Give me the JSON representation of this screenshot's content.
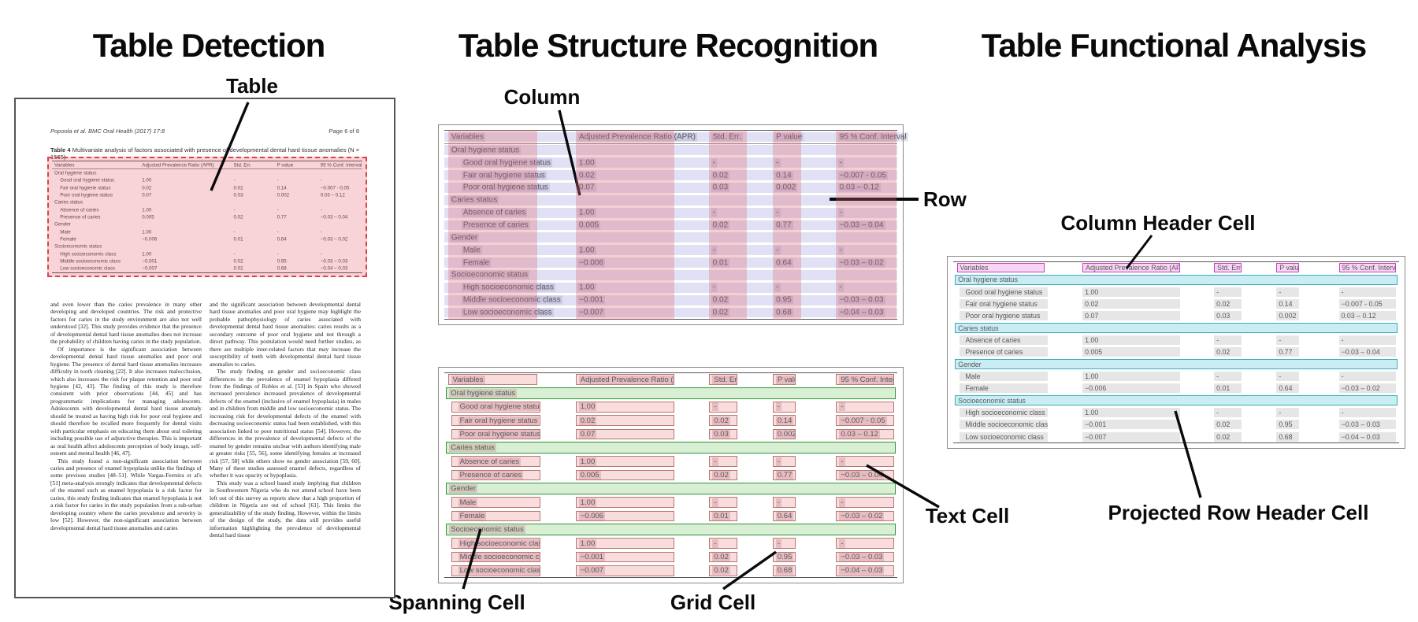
{
  "titles": {
    "detection": "Table Detection",
    "structure": "Table Structure Recognition",
    "functional": "Table Functional Analysis"
  },
  "annotations": {
    "table": "Table",
    "column": "Column",
    "row": "Row",
    "column_header_cell": "Column Header Cell",
    "projected_row_header_cell": "Projected Row Header Cell",
    "text_cell": "Text Cell",
    "spanning_cell": "Spanning Cell",
    "grid_cell": "Grid Cell"
  },
  "document": {
    "running_head_left": "Popoola et al. BMC Oral Health (2017) 17:8",
    "running_head_right": "Page 6 of 8",
    "table_caption_label": "Table 4",
    "table_caption": "Multivariate analysis of factors associated with presence of developmental dental hard tissue anomalies (N = 1565)",
    "body_left": [
      "and even lower than the caries prevalence in many other developing and developed countries. The risk and protective factors for caries in the study environment are also not well understood [32]. This study provides evidence that the presence of developmental dental hard tissue anomalies does not increase the probability of children having caries in the study population.",
      "Of importance is the significant association between developmental dental hard tissue anomalies and poor oral hygiene. The presence of dental hard tissue anomalies increases difficulty in tooth cleaning [22]. It also increases malocclusion, which also increases the risk for plaque retention and poor oral hygiene [42, 43]. The finding of this study is therefore consistent with prior observations [44, 45] and has programmatic implications for managing adolescents. Adolescents with developmental dental hard tissue anomaly should be treated as having high risk for poor oral hygiene and should therefore be recalled more frequently for dental visits with particular emphasis on educating them about oral toileting including possible use of adjunctive therapies. This is important as oral health affect adolescents perception of body image, self-esteem and mental health [46, 47].",
      "This study found a non-significant association between caries and presence of enamel hypoplasia unlike the findings of some previous studies [48–51]. While Vargas-Ferreira et al's [51] meta-analysis strongly indicates that developmental defects of the enamel such as enamel hypoplasia is a risk factor for caries, this study finding indicates that enamel hypoplasia is not a risk factor for caries in the study population from a sub-urban developing country where the caries prevalence and severity is low [52]. However, the non-significant association between developmental dental hard tissue anomalies and caries"
    ],
    "body_right": [
      "and the significant association between developmental dental hard tissue anomalies and poor oral hygiene may highlight the probable pathophysiology of caries associated with developmental dental hard tissue anomalies: caries results as a secondary outcome of poor oral hygiene and not through a direct pathway. This postulation would need further studies, as there are multiple inter-related factors that may increase the susceptibility of teeth with developmental dental hard tissue anomalies to caries.",
      "The study finding on gender and socioeconomic class differences in the prevalence of enamel hypoplasia differed from the findings of Robles et al. [53] in Spain who showed increased prevalence increased prevalence of developmental defects of the enamel (inclusive of enamel hypoplasia) in males and in children from middle and low socioeconomic status. The increasing risk for developmental defects of the enamel with decreasing socioeconomic status had been established, with this association linked to poor nutritional status [54]. However, the differences in the prevalence of developmental defects of the enamel by gender remains unclear with authors identifying male at greater risks [55, 56], some identifying females at increased risk [57, 58] while others show no gender association [59, 60]. Many of these studies assessed enamel defects, regardless of whether it was opacity or hypoplasia.",
      "This study was a school based study implying that children in Southwestern Nigeria who do not attend school have been left out of this survey as reports show that a high proportion of children in Nigeria are out of school [61]. This limits the generalizability of the study finding. However, within the limits of the design of the study, the data still provides useful information highlighting the prevalence of developmental dental hard tissue"
    ]
  },
  "table": {
    "columns": [
      "Variables",
      "Adjusted Prevalence Ratio (APR)",
      "Std. Err.",
      "P value",
      "95 % Conf. Interval"
    ],
    "rows": [
      {
        "type": "section",
        "label": "Oral hygiene status"
      },
      {
        "type": "data",
        "label": "Good oral hygiene status",
        "apr": "1.00",
        "se": "-",
        "p": "-",
        "ci": "-"
      },
      {
        "type": "data",
        "label": "Fair oral hygiene status",
        "apr": "0.02",
        "se": "0.02",
        "p": "0.14",
        "ci": "−0.007 - 0.05"
      },
      {
        "type": "data",
        "label": "Poor oral hygiene status",
        "apr": "0.07",
        "se": "0.03",
        "p": "0.002",
        "ci": "0.03 – 0.12"
      },
      {
        "type": "section",
        "label": "Caries status"
      },
      {
        "type": "data",
        "label": "Absence of caries",
        "apr": "1.00",
        "se": "-",
        "p": "-",
        "ci": "-"
      },
      {
        "type": "data",
        "label": "Presence of caries",
        "apr": "0.005",
        "se": "0.02",
        "p": "0.77",
        "ci": "−0.03 – 0.04"
      },
      {
        "type": "section",
        "label": "Gender"
      },
      {
        "type": "data",
        "label": "Male",
        "apr": "1.00",
        "se": "-",
        "p": "-",
        "ci": "-"
      },
      {
        "type": "data",
        "label": "Female",
        "apr": "−0.006",
        "se": "0.01",
        "p": "0.64",
        "ci": "−0.03 – 0.02"
      },
      {
        "type": "section",
        "label": "Socioeconomic status"
      },
      {
        "type": "data",
        "label": "High socioeconomic class",
        "apr": "1.00",
        "se": "-",
        "p": "-",
        "ci": "-"
      },
      {
        "type": "data",
        "label": "Middle socioeconomic class",
        "apr": "−0.001",
        "se": "0.02",
        "p": "0.95",
        "ci": "−0.03 – 0.03"
      },
      {
        "type": "data",
        "label": "Low socioeconomic class",
        "apr": "−0.007",
        "se": "0.02",
        "p": "0.68",
        "ci": "−0.04 – 0.03"
      }
    ]
  },
  "colors": {
    "detection_box": "#d94343",
    "row_band": "#7878d2",
    "column_band": "#de626e",
    "grid_cell_border": "#b97878",
    "spanning_cell_border": "#2f9437",
    "column_header_border": "#c93fc0",
    "projected_row_header_border": "#38aec0",
    "text_cell_grey": "#e6e6e6"
  }
}
